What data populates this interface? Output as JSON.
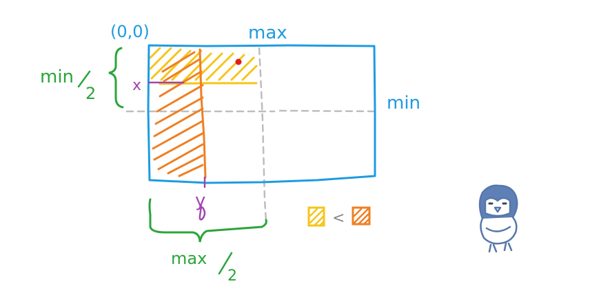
{
  "labels": {
    "origin": "(0,0)",
    "max": "max",
    "min": "min",
    "min_half_num": "min",
    "min_half_den": "2",
    "max_half_num": "max",
    "max_half_den": "2",
    "x": "x",
    "y": "y",
    "less_than": "<"
  },
  "colors": {
    "rectangle": "#1e9be0",
    "yellow_region": "#f5c518",
    "orange_region": "#ef7f22",
    "guides": "#bdbdbd",
    "x_y_marks": "#a044b0",
    "braces": "#2aa53a",
    "point": "#e41b1b",
    "bird": "#5577aa"
  },
  "icons": {
    "point": "red-dot-icon",
    "yellow_swatch": "yellow-hatched-square-icon",
    "orange_swatch": "orange-hatched-square-icon",
    "bird": "owl-doodle-icon"
  }
}
